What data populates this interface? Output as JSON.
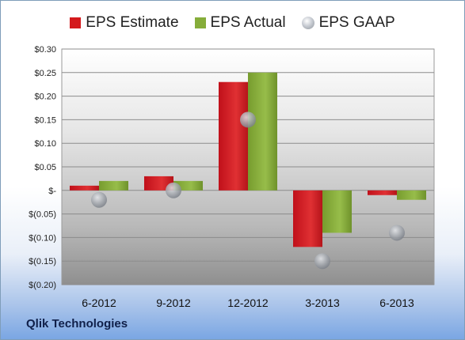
{
  "company": "Qlik Technologies",
  "chart_data": {
    "type": "bar",
    "categories": [
      "6-2012",
      "9-2012",
      "12-2012",
      "3-2013",
      "6-2013"
    ],
    "series": [
      {
        "name": "EPS Estimate",
        "type": "bar",
        "color": "#d4191c",
        "values": [
          0.01,
          0.03,
          0.23,
          -0.12,
          -0.01
        ]
      },
      {
        "name": "EPS Actual",
        "type": "bar",
        "color": "#86ad3a",
        "values": [
          0.02,
          0.02,
          0.25,
          -0.09,
          -0.02
        ]
      },
      {
        "name": "EPS GAAP",
        "type": "scatter",
        "color": "#b0b4ba",
        "values": [
          -0.02,
          0.0,
          0.15,
          -0.15,
          -0.09
        ]
      }
    ],
    "yticks": [
      0.3,
      0.25,
      0.2,
      0.15,
      0.1,
      0.05,
      0.0,
      -0.05,
      -0.1,
      -0.15,
      -0.2
    ],
    "ytick_labels": [
      "$0.30",
      "$0.25",
      "$0.20",
      "$0.15",
      "$0.10",
      "$0.05",
      "$-",
      "$(0.05)",
      "$(0.10)",
      "$(0.15)",
      "$(0.20)"
    ],
    "ylim": [
      -0.2,
      0.3
    ],
    "legend_position": "top",
    "grid": true
  }
}
